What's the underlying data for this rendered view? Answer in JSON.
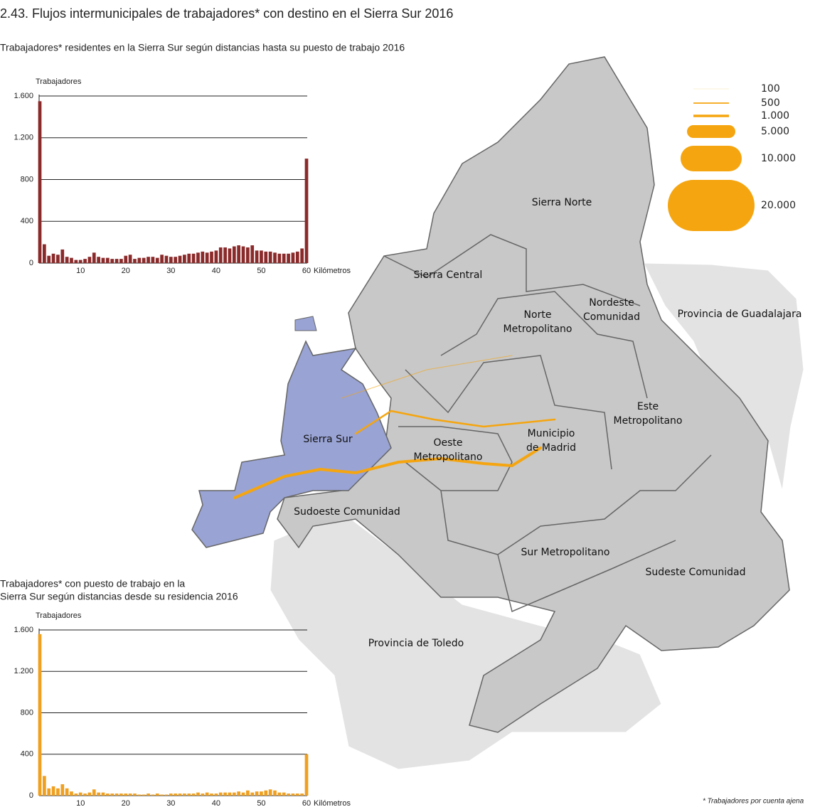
{
  "title": "2.43. Flujos intermunicipales de trabajadores* con destino en el Sierra Sur 2016",
  "footnote": "* Trabajadores por cuenta ajena",
  "charts": [
    {
      "type": "bar",
      "subtitle": [
        "Trabajadores* residentes en la Sierra Sur según distancias hasta su puesto de trabajo 2016"
      ],
      "y_label": "Trabajadores",
      "x_label": "Kilómetros",
      "color": "#8b2a2a",
      "x": [
        1,
        2,
        3,
        4,
        5,
        6,
        7,
        8,
        9,
        10,
        11,
        12,
        13,
        14,
        15,
        16,
        17,
        18,
        19,
        20,
        21,
        22,
        23,
        24,
        25,
        26,
        27,
        28,
        29,
        30,
        31,
        32,
        33,
        34,
        35,
        36,
        37,
        38,
        39,
        40,
        41,
        42,
        43,
        44,
        45,
        46,
        47,
        48,
        49,
        50,
        51,
        52,
        53,
        54,
        55,
        56,
        57,
        58,
        59,
        60
      ],
      "values": [
        1550,
        180,
        70,
        90,
        80,
        130,
        60,
        50,
        30,
        30,
        40,
        60,
        100,
        60,
        50,
        50,
        40,
        40,
        40,
        70,
        80,
        40,
        50,
        50,
        60,
        60,
        50,
        80,
        70,
        60,
        60,
        70,
        80,
        90,
        90,
        100,
        110,
        100,
        110,
        120,
        150,
        150,
        140,
        160,
        170,
        160,
        150,
        170,
        120,
        120,
        110,
        110,
        100,
        90,
        90,
        90,
        100,
        110,
        140,
        1000
      ],
      "xlim": [
        1,
        60
      ],
      "xticks": [
        10,
        20,
        30,
        40,
        50,
        60
      ],
      "ylim": [
        0,
        1600
      ],
      "yticks": [
        0,
        400,
        800,
        {
          "value": 1200,
          "label": "1.200"
        },
        {
          "value": 1600,
          "label": "1.600"
        }
      ],
      "grid": true
    },
    {
      "type": "bar",
      "subtitle": [
        "Trabajadores* con puesto de trabajo en la",
        "Sierra Sur según distancias desde su residencia 2016"
      ],
      "y_label": "Trabajadores",
      "x_label": "Kilómetros",
      "color": "#f0a020",
      "x": [
        1,
        2,
        3,
        4,
        5,
        6,
        7,
        8,
        9,
        10,
        11,
        12,
        13,
        14,
        15,
        16,
        17,
        18,
        19,
        20,
        21,
        22,
        23,
        24,
        25,
        26,
        27,
        28,
        29,
        30,
        31,
        32,
        33,
        34,
        35,
        36,
        37,
        38,
        39,
        40,
        41,
        42,
        43,
        44,
        45,
        46,
        47,
        48,
        49,
        50,
        51,
        52,
        53,
        54,
        55,
        56,
        57,
        58,
        59,
        60
      ],
      "values": [
        1560,
        190,
        70,
        90,
        70,
        110,
        70,
        40,
        20,
        30,
        20,
        30,
        60,
        30,
        30,
        20,
        20,
        20,
        20,
        20,
        20,
        20,
        10,
        10,
        20,
        10,
        20,
        10,
        10,
        20,
        20,
        20,
        20,
        20,
        20,
        30,
        20,
        30,
        20,
        20,
        30,
        30,
        30,
        30,
        40,
        30,
        50,
        30,
        40,
        40,
        50,
        60,
        50,
        30,
        30,
        20,
        20,
        20,
        20,
        400
      ],
      "xlim": [
        1,
        60
      ],
      "xticks": [
        10,
        20,
        30,
        40,
        50,
        60
      ],
      "ylim": [
        0,
        1600
      ],
      "yticks": [
        0,
        400,
        800,
        {
          "value": 1200,
          "label": "1.200"
        },
        {
          "value": 1600,
          "label": "1.600"
        }
      ],
      "grid": true
    }
  ],
  "map": {
    "legend": [
      {
        "value": 100,
        "label": "100"
      },
      {
        "value": 500,
        "label": "500"
      },
      {
        "value": 1000,
        "label": "1.000"
      },
      {
        "value": 5000,
        "label": "5.000"
      },
      {
        "value": 10000,
        "label": "10.000"
      },
      {
        "value": 20000,
        "label": "20.000"
      }
    ],
    "legend_color": "#f5a50f",
    "regions": [
      {
        "lines": [
          "Sierra Norte"
        ]
      },
      {
        "lines": [
          "Sierra Central"
        ]
      },
      {
        "lines": [
          "Norte",
          "Metropolitano"
        ]
      },
      {
        "lines": [
          "Nordeste",
          "Comunidad"
        ]
      },
      {
        "lines": [
          "Provincia de Guadalajara"
        ]
      },
      {
        "lines": [
          "Este",
          "Metropolitano"
        ]
      },
      {
        "lines": [
          "Sierra Sur"
        ]
      },
      {
        "lines": [
          "Oeste",
          "Metropolitano"
        ]
      },
      {
        "lines": [
          "Municipio",
          "de Madrid"
        ]
      },
      {
        "lines": [
          "Sudoeste Comunidad"
        ]
      },
      {
        "lines": [
          "Sur Metropolitano"
        ]
      },
      {
        "lines": [
          "Sudeste Comunidad"
        ]
      },
      {
        "lines": [
          "Provincia de Toledo"
        ]
      }
    ]
  }
}
